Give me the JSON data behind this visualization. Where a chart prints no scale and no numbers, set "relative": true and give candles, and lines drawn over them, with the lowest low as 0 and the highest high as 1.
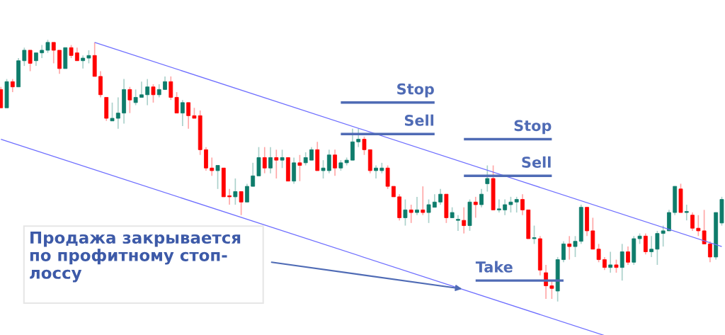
{
  "chart_data": {
    "type": "candlestick",
    "relative": true,
    "categories": [
      null,
      null,
      null,
      null,
      null,
      null,
      null,
      null,
      null,
      null,
      null,
      null,
      null,
      null,
      null,
      null,
      null,
      null,
      null,
      null,
      null,
      null,
      null,
      null,
      null,
      null,
      null,
      null,
      null,
      null,
      null,
      null,
      null,
      null,
      null,
      null,
      null,
      null,
      null,
      null,
      null,
      null,
      null,
      null,
      null,
      null,
      null,
      null,
      null,
      null,
      null,
      null,
      null,
      null,
      null,
      null,
      null,
      null,
      null,
      null,
      null,
      null,
      null,
      null,
      null,
      null,
      null,
      null,
      null,
      null,
      null,
      null,
      null,
      null,
      null,
      null,
      null,
      null,
      null,
      null,
      null,
      null,
      null,
      null,
      null,
      null,
      null,
      null,
      null,
      null,
      null,
      null,
      null,
      null,
      null,
      null,
      null,
      null,
      null,
      null,
      null,
      null,
      null,
      null,
      null,
      null,
      null,
      null,
      null,
      null,
      null,
      null,
      null,
      null,
      null,
      null,
      null,
      null,
      null,
      null,
      null,
      null,
      null,
      null
    ],
    "ohlc": [
      [
        0.81,
        0.82,
        0.74,
        0.74
      ],
      [
        0.74,
        0.85,
        0.74,
        0.84
      ],
      [
        0.84,
        0.85,
        0.8,
        0.82
      ],
      [
        0.82,
        0.93,
        0.82,
        0.92
      ],
      [
        0.92,
        0.97,
        0.9,
        0.96
      ],
      [
        0.96,
        0.96,
        0.88,
        0.91
      ],
      [
        0.92,
        0.95,
        0.9,
        0.95
      ],
      [
        0.95,
        0.98,
        0.93,
        0.96
      ],
      [
        0.96,
        1,
        0.95,
        0.99
      ],
      [
        0.99,
        0.99,
        0.91,
        0.96
      ],
      [
        0.96,
        0.96,
        0.87,
        0.89
      ],
      [
        0.89,
        0.97,
        0.89,
        0.97
      ],
      [
        0.97,
        0.98,
        0.93,
        0.94
      ],
      [
        0.95,
        0.97,
        0.92,
        0.92
      ],
      [
        0.92,
        0.94,
        0.89,
        0.93
      ],
      [
        0.93,
        0.96,
        0.91,
        0.94
      ],
      [
        0.94,
        0.99,
        0.86,
        0.86
      ],
      [
        0.86,
        0.88,
        0.78,
        0.79
      ],
      [
        0.78,
        0.78,
        0.69,
        0.7
      ],
      [
        0.69,
        0.76,
        0.69,
        0.7
      ],
      [
        0.7,
        0.78,
        0.66,
        0.72
      ],
      [
        0.72,
        0.85,
        0.68,
        0.81
      ],
      [
        0.81,
        0.82,
        0.72,
        0.77
      ],
      [
        0.76,
        0.81,
        0.75,
        0.78
      ],
      [
        0.78,
        0.84,
        0.78,
        0.79
      ],
      [
        0.79,
        0.85,
        0.75,
        0.82
      ],
      [
        0.82,
        0.83,
        0.76,
        0.79
      ],
      [
        0.79,
        0.83,
        0.78,
        0.81
      ],
      [
        0.81,
        0.86,
        0.81,
        0.84
      ],
      [
        0.84,
        0.86,
        0.77,
        0.78
      ],
      [
        0.78,
        0.8,
        0.72,
        0.72
      ],
      [
        0.72,
        0.77,
        0.67,
        0.76
      ],
      [
        0.76,
        0.76,
        0.66,
        0.71
      ],
      [
        0.71,
        0.74,
        0.7,
        0.7
      ],
      [
        0.71,
        0.73,
        0.56,
        0.58
      ],
      [
        0.58,
        0.59,
        0.5,
        0.51
      ],
      [
        0.51,
        0.55,
        0.48,
        0.5
      ],
      [
        0.5,
        0.52,
        0.43,
        0.52
      ],
      [
        0.51,
        0.51,
        0.4,
        0.4
      ],
      [
        0.4,
        0.43,
        0.37,
        0.4
      ],
      [
        0.4,
        0.47,
        0.37,
        0.42
      ],
      [
        0.42,
        0.42,
        0.33,
        0.38
      ],
      [
        0.38,
        0.45,
        0.38,
        0.44
      ],
      [
        0.44,
        0.53,
        0.44,
        0.48
      ],
      [
        0.48,
        0.59,
        0.48,
        0.55
      ],
      [
        0.55,
        0.59,
        0.49,
        0.51
      ],
      [
        0.51,
        0.59,
        0.49,
        0.55
      ],
      [
        0.55,
        0.58,
        0.47,
        0.54
      ],
      [
        0.54,
        0.58,
        0.51,
        0.55
      ],
      [
        0.55,
        0.55,
        0.46,
        0.46
      ],
      [
        0.46,
        0.55,
        0.45,
        0.53
      ],
      [
        0.53,
        0.56,
        0.46,
        0.52
      ],
      [
        0.53,
        0.57,
        0.52,
        0.55
      ],
      [
        0.54,
        0.59,
        0.54,
        0.58
      ],
      [
        0.58,
        0.61,
        0.5,
        0.5
      ],
      [
        0.5,
        0.54,
        0.47,
        0.51
      ],
      [
        0.5,
        0.58,
        0.49,
        0.56
      ],
      [
        0.56,
        0.58,
        0.48,
        0.51
      ],
      [
        0.51,
        0.54,
        0.5,
        0.53
      ],
      [
        0.53,
        0.55,
        0.52,
        0.54
      ],
      [
        0.54,
        0.66,
        0.54,
        0.61
      ],
      [
        0.61,
        0.66,
        0.59,
        0.62
      ],
      [
        0.62,
        0.63,
        0.56,
        0.58
      ],
      [
        0.58,
        0.58,
        0.49,
        0.5
      ],
      [
        0.5,
        0.52,
        0.47,
        0.51
      ],
      [
        0.5,
        0.53,
        0.49,
        0.51
      ],
      [
        0.51,
        0.52,
        0.43,
        0.44
      ],
      [
        0.44,
        0.44,
        0.4,
        0.4
      ],
      [
        0.4,
        0.41,
        0.31,
        0.32
      ],
      [
        0.32,
        0.39,
        0.29,
        0.35
      ],
      [
        0.35,
        0.37,
        0.3,
        0.34
      ],
      [
        0.34,
        0.4,
        0.33,
        0.35
      ],
      [
        0.35,
        0.44,
        0.33,
        0.34
      ],
      [
        0.34,
        0.39,
        0.3,
        0.37
      ],
      [
        0.36,
        0.41,
        0.36,
        0.38
      ],
      [
        0.38,
        0.43,
        0.37,
        0.41
      ],
      [
        0.41,
        0.41,
        0.3,
        0.32
      ],
      [
        0.32,
        0.36,
        0.32,
        0.34
      ],
      [
        0.31,
        0.33,
        0.27,
        0.31
      ],
      [
        0.31,
        0.36,
        0.26,
        0.29
      ],
      [
        0.29,
        0.39,
        0.27,
        0.38
      ],
      [
        0.38,
        0.4,
        0.32,
        0.37
      ],
      [
        0.37,
        0.43,
        0.36,
        0.41
      ],
      [
        0.45,
        0.52,
        0.42,
        0.47
      ],
      [
        0.47,
        0.52,
        0.35,
        0.35
      ],
      [
        0.35,
        0.39,
        0.34,
        0.35
      ],
      [
        0.35,
        0.39,
        0.33,
        0.37
      ],
      [
        0.37,
        0.4,
        0.34,
        0.38
      ],
      [
        0.38,
        0.4,
        0.34,
        0.39
      ],
      [
        0.39,
        0.41,
        0.33,
        0.35
      ],
      [
        0.35,
        0.35,
        0.24,
        0.24
      ],
      [
        0.24,
        0.29,
        0.22,
        0.24
      ],
      [
        0.24,
        0.25,
        0.1,
        0.12
      ],
      [
        0.11,
        0.14,
        0.01,
        0.06
      ],
      [
        0.06,
        0.08,
        0.01,
        0.05
      ],
      [
        0.04,
        0.17,
        0,
        0.16
      ],
      [
        0.16,
        0.23,
        0.15,
        0.22
      ],
      [
        0.22,
        0.25,
        0.16,
        0.21
      ],
      [
        0.21,
        0.25,
        0.17,
        0.23
      ],
      [
        0.23,
        0.37,
        0.22,
        0.36
      ],
      [
        0.36,
        0.36,
        0.25,
        0.27
      ],
      [
        0.27,
        0.32,
        0.2,
        0.2
      ],
      [
        0.2,
        0.22,
        0.15,
        0.16
      ],
      [
        0.16,
        0.17,
        0.12,
        0.13
      ],
      [
        0.13,
        0.19,
        0.11,
        0.14
      ],
      [
        0.14,
        0.16,
        0.11,
        0.13
      ],
      [
        0.13,
        0.22,
        0.08,
        0.19
      ],
      [
        0.19,
        0.21,
        0.14,
        0.15
      ],
      [
        0.15,
        0.25,
        0.14,
        0.24
      ],
      [
        0.24,
        0.26,
        0.22,
        0.25
      ],
      [
        0.25,
        0.26,
        0.18,
        0.19
      ],
      [
        0.19,
        0.25,
        0.17,
        0.2
      ],
      [
        0.2,
        0.27,
        0.14,
        0.26
      ],
      [
        0.26,
        0.29,
        0.21,
        0.27
      ],
      [
        0.27,
        0.35,
        0.27,
        0.34
      ],
      [
        0.34,
        0.44,
        0.33,
        0.44
      ],
      [
        0.43,
        0.45,
        0.34,
        0.34
      ],
      [
        0.34,
        0.37,
        0.31,
        0.34
      ],
      [
        0.33,
        0.34,
        0.27,
        0.28
      ],
      [
        0.28,
        0.33,
        0.25,
        0.27
      ],
      [
        0.27,
        0.35,
        0.22,
        0.22
      ],
      [
        0.22,
        0.23,
        0.15,
        0.17
      ],
      [
        0.17,
        0.34,
        0.16,
        0.34
      ],
      [
        0.3,
        0.4,
        0.29,
        0.39
      ]
    ],
    "colors": [
      "#ff0000",
      "#0e7c6b",
      "#ff0000",
      "#0e7c6b",
      "#0e7c6b",
      "#ff0000",
      "#0e7c6b",
      "#0e7c6b",
      "#0e7c6b",
      "#ff0000",
      "#ff0000",
      "#0e7c6b",
      "#ff0000",
      "#ff0000",
      "#0e7c6b",
      "#0e7c6b",
      "#ff0000",
      "#ff0000",
      "#ff0000",
      "#0e7c6b",
      "#0e7c6b",
      "#0e7c6b",
      "#ff0000",
      "#0e7c6b",
      "#0e7c6b",
      "#0e7c6b",
      "#ff0000",
      "#0e7c6b",
      "#0e7c6b",
      "#ff0000",
      "#ff0000",
      "#0e7c6b",
      "#ff0000",
      "#ff0000",
      "#ff0000",
      "#ff0000",
      "#ff0000",
      "#0e7c6b",
      "#ff0000",
      "#ff0000",
      "#0e7c6b",
      "#ff0000",
      "#0e7c6b",
      "#0e7c6b",
      "#0e7c6b",
      "#ff0000",
      "#0e7c6b",
      "#ff0000",
      "#0e7c6b",
      "#ff0000",
      "#0e7c6b",
      "#ff0000",
      "#0e7c6b",
      "#0e7c6b",
      "#ff0000",
      "#0e7c6b",
      "#0e7c6b",
      "#ff0000",
      "#0e7c6b",
      "#0e7c6b",
      "#0e7c6b",
      "#0e7c6b",
      "#ff0000",
      "#ff0000",
      "#0e7c6b",
      "#0e7c6b",
      "#ff0000",
      "#ff0000",
      "#ff0000",
      "#0e7c6b",
      "#ff0000",
      "#0e7c6b",
      "#ff0000",
      "#0e7c6b",
      "#0e7c6b",
      "#0e7c6b",
      "#ff0000",
      "#0e7c6b",
      "#0e7c6b",
      "#ff0000",
      "#0e7c6b",
      "#ff0000",
      "#0e7c6b",
      "#0e7c6b",
      "#ff0000",
      "#0e7c6b",
      "#0e7c6b",
      "#0e7c6b",
      "#0e7c6b",
      "#ff0000",
      "#ff0000",
      "#0e7c6b",
      "#ff0000",
      "#ff0000",
      "#ff0000",
      "#0e7c6b",
      "#0e7c6b",
      "#ff0000",
      "#0e7c6b",
      "#0e7c6b",
      "#ff0000",
      "#ff0000",
      "#ff0000",
      "#ff0000",
      "#0e7c6b",
      "#ff0000",
      "#0e7c6b",
      "#ff0000",
      "#0e7c6b",
      "#0e7c6b",
      "#ff0000",
      "#0e7c6b",
      "#0e7c6b",
      "#0e7c6b",
      "#0e7c6b",
      "#0e7c6b",
      "#ff0000",
      "#0e7c6b",
      "#ff0000",
      "#ff0000",
      "#ff0000",
      "#ff0000",
      "#0e7c6b",
      "#0e7c6b"
    ],
    "series": [
      {
        "type": "line",
        "color": "#6e6eff",
        "values": [
          null,
          null,
          null,
          null,
          null,
          null,
          null,
          null,
          null,
          null,
          null,
          null,
          null,
          null,
          null,
          null,
          0.99,
          null,
          null,
          null,
          null,
          null,
          null,
          null,
          null,
          null,
          null,
          null,
          null,
          null,
          null,
          null,
          null,
          null,
          null,
          null,
          null,
          null,
          null,
          null,
          null,
          null,
          null,
          null,
          null,
          null,
          null,
          null,
          null,
          null,
          null,
          null,
          null,
          null,
          null,
          null,
          null,
          null,
          null,
          null,
          null,
          null,
          null,
          null,
          null,
          null,
          null,
          null,
          null,
          null,
          null,
          null,
          null,
          null,
          null,
          null,
          null,
          null,
          null,
          null,
          null,
          null,
          null,
          null,
          null,
          null,
          null,
          null,
          null,
          null,
          null,
          null,
          null,
          null,
          null,
          null,
          null,
          null,
          null,
          null,
          null,
          null,
          null,
          null,
          null,
          null,
          null,
          null,
          null,
          null,
          null,
          null,
          null,
          null,
          null,
          null,
          null,
          null,
          null,
          null,
          null,
          null,
          null,
          0.21
        ]
      },
      {
        "type": "line",
        "color": "#6e6eff",
        "values": [
          0.62,
          null,
          null,
          null,
          null,
          null,
          null,
          null,
          null,
          null,
          null,
          null,
          null,
          null,
          null,
          null,
          null,
          null,
          null,
          null,
          null,
          null,
          null,
          null,
          null,
          null,
          null,
          null,
          null,
          null,
          null,
          null,
          null,
          null,
          null,
          null,
          null,
          null,
          null,
          null,
          null,
          null,
          null,
          null,
          null,
          null,
          null,
          null,
          null,
          null,
          null,
          null,
          null,
          null,
          null,
          null,
          null,
          null,
          null,
          null,
          null,
          null,
          null,
          null,
          null,
          null,
          null,
          null,
          null,
          null,
          null,
          null,
          null,
          null,
          null,
          null,
          null,
          null,
          null,
          null,
          null,
          null,
          null,
          null,
          null,
          null,
          null,
          null,
          null,
          null,
          null,
          null,
          null,
          null,
          null,
          null,
          null,
          null,
          null,
          null,
          null,
          null,
          null,
          -0.13,
          null,
          null,
          null,
          null,
          null,
          null,
          null,
          null,
          null,
          null,
          null,
          null,
          null,
          null,
          null,
          null,
          null,
          null,
          null,
          null
        ]
      },
      {
        "type": "line",
        "name": "Stop",
        "color": "#4f6bb5",
        "values": [
          null,
          null,
          null,
          null,
          null,
          null,
          null,
          null,
          null,
          null,
          null,
          null,
          null,
          null,
          null,
          null,
          null,
          null,
          null,
          null,
          null,
          null,
          null,
          null,
          null,
          null,
          null,
          null,
          null,
          null,
          null,
          null,
          null,
          null,
          null,
          null,
          null,
          null,
          null,
          null,
          null,
          null,
          null,
          null,
          null,
          null,
          null,
          null,
          null,
          null,
          null,
          null,
          null,
          null,
          null,
          null,
          null,
          null,
          0.76,
          null,
          null,
          null,
          null,
          null,
          null,
          null,
          null,
          null,
          null,
          null,
          null,
          null,
          null,
          null,
          0.76,
          null,
          null,
          null,
          null,
          null,
          null,
          null,
          null,
          null,
          null,
          null,
          null,
          null,
          null,
          null,
          null,
          null,
          null,
          null,
          null,
          null,
          null,
          null,
          null,
          null,
          null,
          null,
          null,
          null,
          null,
          null,
          null,
          null,
          null,
          null,
          null,
          null,
          null,
          null,
          null,
          null,
          null,
          null,
          null,
          null,
          null,
          null,
          null,
          null
        ]
      },
      {
        "type": "line",
        "name": "Sell",
        "color": "#4f6bb5",
        "values": [
          null,
          null,
          null,
          null,
          null,
          null,
          null,
          null,
          null,
          null,
          null,
          null,
          null,
          null,
          null,
          null,
          null,
          null,
          null,
          null,
          null,
          null,
          null,
          null,
          null,
          null,
          null,
          null,
          null,
          null,
          null,
          null,
          null,
          null,
          null,
          null,
          null,
          null,
          null,
          null,
          null,
          null,
          null,
          null,
          null,
          null,
          null,
          null,
          null,
          null,
          null,
          null,
          null,
          null,
          null,
          null,
          null,
          null,
          0.64,
          null,
          null,
          null,
          null,
          null,
          null,
          null,
          null,
          null,
          null,
          null,
          null,
          null,
          null,
          null,
          0.64,
          null,
          null,
          null,
          null,
          null,
          null,
          null,
          null,
          null,
          null,
          null,
          null,
          null,
          null,
          null,
          null,
          null,
          null,
          null,
          null,
          null,
          null,
          null,
          null,
          null,
          null,
          null,
          null,
          null,
          null,
          null,
          null,
          null,
          null,
          null,
          null,
          null,
          null,
          null,
          null,
          null,
          null,
          null,
          null,
          null,
          null,
          null,
          null,
          null
        ]
      },
      {
        "type": "line",
        "name": "Stop",
        "color": "#4f6bb5",
        "values": [
          null,
          null,
          null,
          null,
          null,
          null,
          null,
          null,
          null,
          null,
          null,
          null,
          null,
          null,
          null,
          null,
          null,
          null,
          null,
          null,
          null,
          null,
          null,
          null,
          null,
          null,
          null,
          null,
          null,
          null,
          null,
          null,
          null,
          null,
          null,
          null,
          null,
          null,
          null,
          null,
          null,
          null,
          null,
          null,
          null,
          null,
          null,
          null,
          null,
          null,
          null,
          null,
          null,
          null,
          null,
          null,
          null,
          null,
          null,
          null,
          null,
          null,
          null,
          null,
          null,
          null,
          null,
          null,
          null,
          null,
          null,
          null,
          null,
          null,
          null,
          null,
          null,
          null,
          null,
          0.62,
          null,
          null,
          null,
          null,
          null,
          null,
          null,
          null,
          null,
          null,
          null,
          null,
          null,
          null,
          0.62,
          null,
          null,
          null,
          null,
          null,
          null,
          null,
          null,
          null,
          null,
          null,
          null,
          null,
          null,
          null,
          null,
          null,
          null,
          null,
          null,
          null,
          null,
          null,
          null,
          null,
          null,
          null,
          null,
          null
        ]
      },
      {
        "type": "line",
        "name": "Sell",
        "color": "#4f6bb5",
        "values": [
          null,
          null,
          null,
          null,
          null,
          null,
          null,
          null,
          null,
          null,
          null,
          null,
          null,
          null,
          null,
          null,
          null,
          null,
          null,
          null,
          null,
          null,
          null,
          null,
          null,
          null,
          null,
          null,
          null,
          null,
          null,
          null,
          null,
          null,
          null,
          null,
          null,
          null,
          null,
          null,
          null,
          null,
          null,
          null,
          null,
          null,
          null,
          null,
          null,
          null,
          null,
          null,
          null,
          null,
          null,
          null,
          null,
          null,
          null,
          null,
          null,
          null,
          null,
          null,
          null,
          null,
          null,
          null,
          null,
          null,
          null,
          null,
          null,
          null,
          null,
          null,
          null,
          null,
          null,
          0.48,
          null,
          null,
          null,
          null,
          null,
          null,
          null,
          null,
          null,
          null,
          null,
          null,
          null,
          null,
          0.48,
          null,
          null,
          null,
          null,
          null,
          null,
          null,
          null,
          null,
          null,
          null,
          null,
          null,
          null,
          null,
          null,
          null,
          null,
          null,
          null,
          null,
          null,
          null,
          null,
          null,
          null,
          null,
          null,
          null
        ]
      },
      {
        "type": "line",
        "name": "Take",
        "color": "#4f6bb5",
        "values": [
          null,
          null,
          null,
          null,
          null,
          null,
          null,
          null,
          null,
          null,
          null,
          null,
          null,
          null,
          null,
          null,
          null,
          null,
          null,
          null,
          null,
          null,
          null,
          null,
          null,
          null,
          null,
          null,
          null,
          null,
          null,
          null,
          null,
          null,
          null,
          null,
          null,
          null,
          null,
          null,
          null,
          null,
          null,
          null,
          null,
          null,
          null,
          null,
          null,
          null,
          null,
          null,
          null,
          null,
          null,
          null,
          null,
          null,
          null,
          null,
          null,
          null,
          null,
          null,
          null,
          null,
          null,
          null,
          null,
          null,
          null,
          null,
          null,
          null,
          null,
          null,
          null,
          null,
          null,
          null,
          null,
          0.08,
          null,
          null,
          null,
          null,
          null,
          null,
          null,
          null,
          null,
          null,
          null,
          null,
          null,
          null,
          0.08,
          null,
          null,
          null,
          null,
          null,
          null,
          null,
          null,
          null,
          null,
          null,
          null,
          null,
          null,
          null,
          null,
          null,
          null,
          null,
          null,
          null,
          null,
          null,
          null,
          null,
          null,
          null
        ]
      }
    ],
    "annotations": [
      "Продажа закрывается\nпо профитному стоп-\nлоссу"
    ]
  }
}
